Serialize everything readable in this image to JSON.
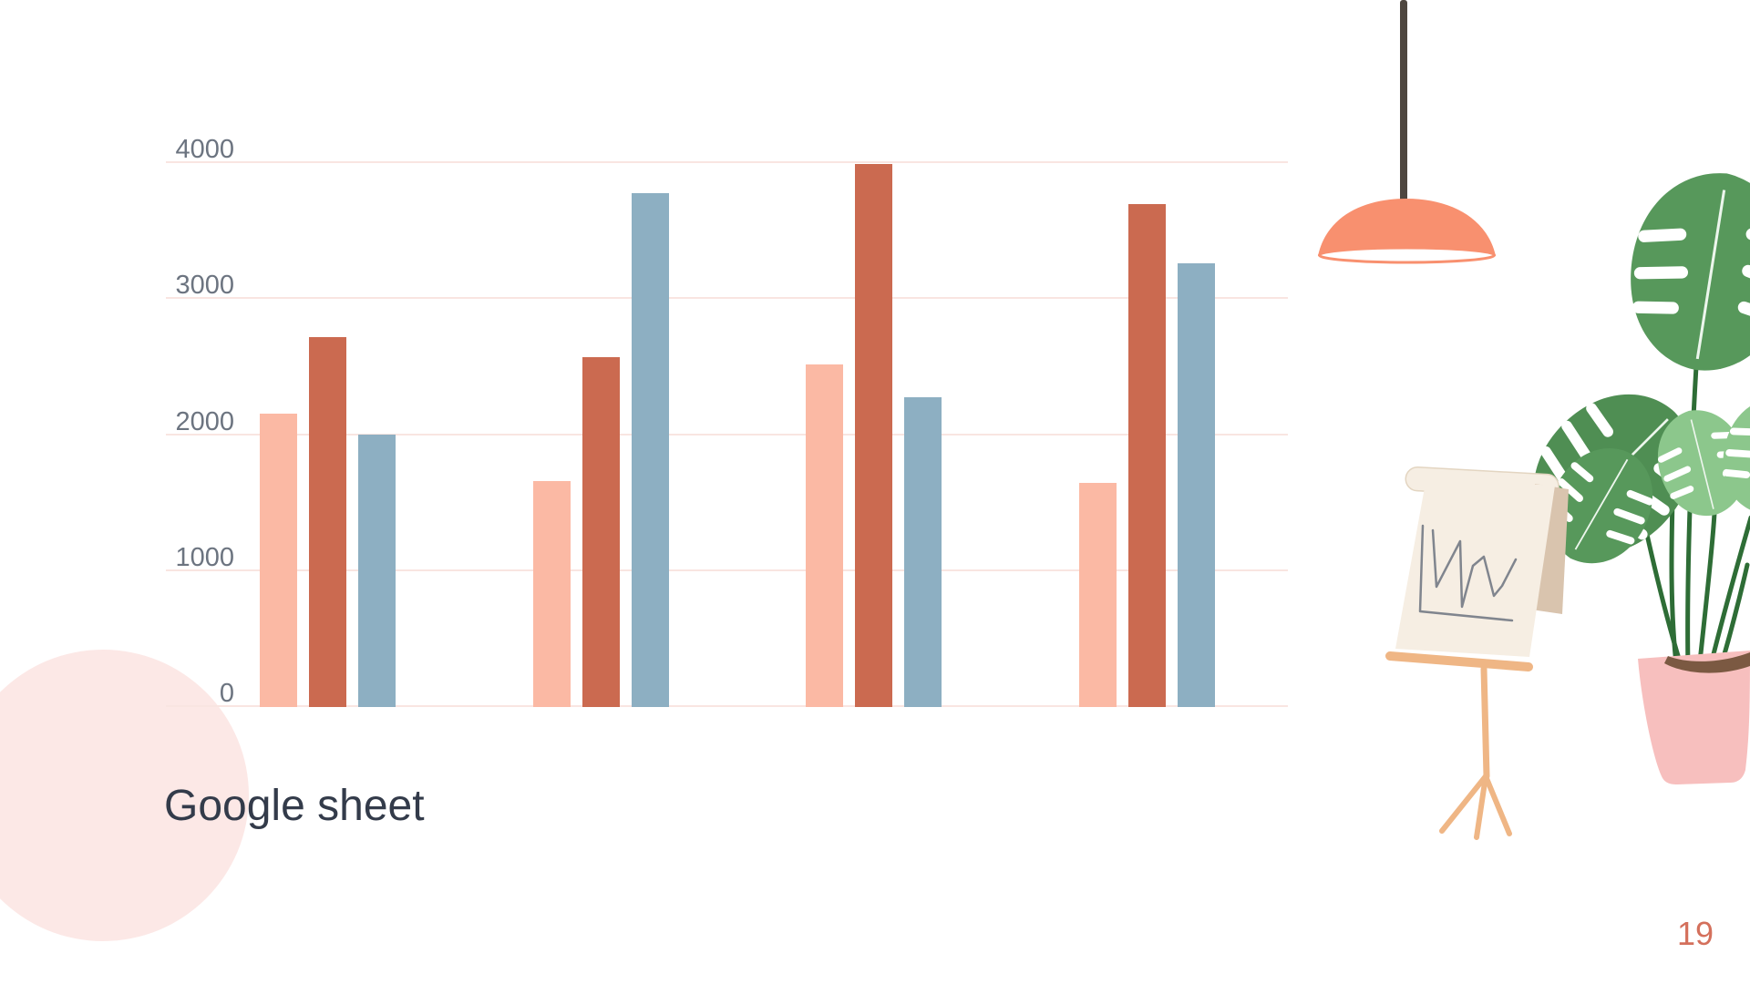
{
  "page": {
    "title": "Google sheet",
    "title_color": "#333B4A",
    "page_number": "19",
    "page_number_color": "#D4705C",
    "background": "#FFFFFF"
  },
  "chart_data": {
    "type": "bar",
    "title": "",
    "group_count": 4,
    "categories": [
      "",
      "",
      "",
      ""
    ],
    "series": [
      {
        "color": "#FBB9A4",
        "values": [
          2160,
          1660,
          2520,
          1650
        ]
      },
      {
        "color": "#CB6A50",
        "values": [
          2720,
          2570,
          3990,
          3700
        ]
      },
      {
        "color": "#8DAFC2",
        "values": [
          2000,
          3780,
          2280,
          3260
        ]
      }
    ],
    "y_ticks": [
      4000,
      3000,
      2000,
      1000,
      0
    ],
    "ylim": [
      0,
      4000
    ],
    "grid": true,
    "legend": false,
    "x_axis_labels_visible": false,
    "gridline_color": "#F9E5E1",
    "tick_label_color": "#6C7480"
  },
  "decor": {
    "circle_color": "#FCE8E6",
    "lamp": {
      "shade_color": "#F8906F",
      "cord_color": "#4E463F",
      "underside_color": "#FFFFFF"
    },
    "plant": {
      "leaf_color": "#57985B",
      "leaf_color_dark": "#4F8E53",
      "leaf_color_light": "#8CC78C",
      "vein_color": "#EDF6ED",
      "stem_color": "#2E6D36",
      "pot_color": "#F7BFBE",
      "soil_color": "#7B5942"
    },
    "easel": {
      "paper_color": "#F6EEE3",
      "roll_edge_color": "#E3D5C1",
      "flap_color": "#D9C4AE",
      "stand_color": "#EFB685",
      "sketch_color": "#80858E"
    }
  }
}
